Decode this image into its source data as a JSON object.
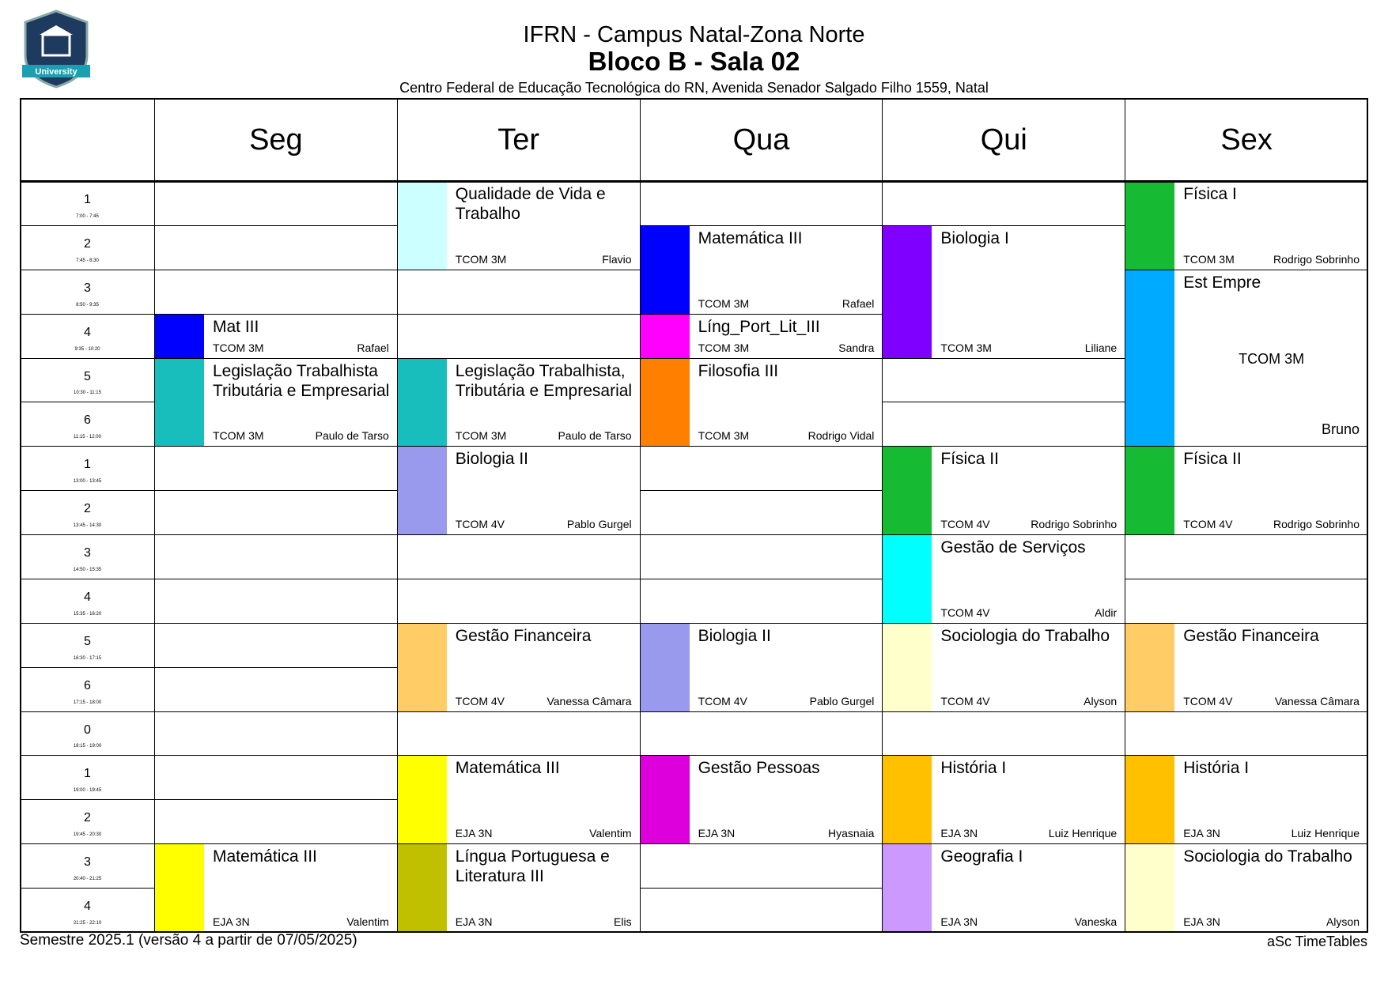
{
  "header": {
    "title": "IFRN - Campus Natal-Zona Norte",
    "room": "Bloco B - Sala 02",
    "address": "Centro Federal de Educação Tecnológica do RN, Avenida Senador Salgado Filho 1559, Natal",
    "logo": "University"
  },
  "days": [
    "Seg",
    "Ter",
    "Qua",
    "Qui",
    "Sex"
  ],
  "periods": [
    {
      "label": "1",
      "time": "7:00 - 7:45"
    },
    {
      "label": "2",
      "time": "7:45 - 8:30"
    },
    {
      "label": "3",
      "time": "8:50 - 9:35"
    },
    {
      "label": "4",
      "time": "9:35 - 10:20"
    },
    {
      "label": "5",
      "time": "10:30 - 11:15"
    },
    {
      "label": "6",
      "time": "11:15 - 12:00"
    },
    {
      "label": "1",
      "time": "13:00 - 13:45"
    },
    {
      "label": "2",
      "time": "13:45 - 14:30"
    },
    {
      "label": "3",
      "time": "14:50 - 15:35"
    },
    {
      "label": "4",
      "time": "15:35 - 16:20"
    },
    {
      "label": "5",
      "time": "16:30 - 17:15"
    },
    {
      "label": "6",
      "time": "17:15 - 18:00"
    },
    {
      "label": "0",
      "time": "18:15 - 19:00"
    },
    {
      "label": "1",
      "time": "19:00 - 19:45"
    },
    {
      "label": "2",
      "time": "19:45 - 20:30"
    },
    {
      "label": "3",
      "time": "20:40 - 21:25"
    },
    {
      "label": "4",
      "time": "21:25 - 22:10"
    }
  ],
  "lessons": [
    {
      "day": 0,
      "start": 3,
      "span": 1,
      "subject": "Mat III",
      "class": "TCOM 3M",
      "teacher": "Rafael",
      "color": "#0000ff"
    },
    {
      "day": 0,
      "start": 4,
      "span": 2,
      "subject": "Legislação Trabalhista Tributária e Empresarial",
      "class": "TCOM 3M",
      "teacher": "Paulo de Tarso",
      "color": "#17bebb"
    },
    {
      "day": 0,
      "start": 15,
      "span": 2,
      "subject": "Matemática III",
      "class": "EJA 3N",
      "teacher": "Valentim",
      "color": "#ffff00"
    },
    {
      "day": 1,
      "start": 0,
      "span": 2,
      "subject": "Qualidade de Vida e Trabalho",
      "class": "TCOM 3M",
      "teacher": "Flavio",
      "color": "#ccffff"
    },
    {
      "day": 1,
      "start": 4,
      "span": 2,
      "subject": "Legislação Trabalhista, Tributária e Empresarial",
      "class": "TCOM 3M",
      "teacher": "Paulo de Tarso",
      "color": "#17bebb"
    },
    {
      "day": 1,
      "start": 6,
      "span": 2,
      "subject": "Biologia II",
      "class": "TCOM 4V",
      "teacher": "Pablo Gurgel",
      "color": "#9999ee"
    },
    {
      "day": 1,
      "start": 10,
      "span": 2,
      "subject": "Gestão Financeira",
      "class": "TCOM 4V",
      "teacher": "Vanessa Câmara",
      "color": "#ffcc66"
    },
    {
      "day": 1,
      "start": 13,
      "span": 2,
      "subject": "Matemática III",
      "class": "EJA 3N",
      "teacher": "Valentim",
      "color": "#ffff00"
    },
    {
      "day": 1,
      "start": 15,
      "span": 2,
      "subject": "Língua Portuguesa e Literatura III",
      "class": "EJA 3N",
      "teacher": "Elis",
      "color": "#c0c000"
    },
    {
      "day": 2,
      "start": 1,
      "span": 2,
      "subject": "Matemática III",
      "class": "TCOM 3M",
      "teacher": "Rafael",
      "color": "#0000ff"
    },
    {
      "day": 2,
      "start": 3,
      "span": 1,
      "subject": "Líng_Port_Lit_III",
      "class": "TCOM 3M",
      "teacher": "Sandra",
      "color": "#ff00ff"
    },
    {
      "day": 2,
      "start": 4,
      "span": 2,
      "subject": "Filosofia III",
      "class": "TCOM 3M",
      "teacher": "Rodrigo Vidal",
      "color": "#ff8000"
    },
    {
      "day": 2,
      "start": 10,
      "span": 2,
      "subject": "Biologia II",
      "class": "TCOM 4V",
      "teacher": "Pablo Gurgel",
      "color": "#9999ee"
    },
    {
      "day": 2,
      "start": 13,
      "span": 2,
      "subject": "Gestão Pessoas",
      "class": "EJA 3N",
      "teacher": "Hyasnaia",
      "color": "#dd00dd"
    },
    {
      "day": 3,
      "start": 1,
      "span": 3,
      "subject": "Biologia I",
      "class": "TCOM 3M",
      "teacher": "Liliane",
      "color": "#8000ff"
    },
    {
      "day": 3,
      "start": 6,
      "span": 2,
      "subject": "Física II",
      "class": "TCOM 4V",
      "teacher": "Rodrigo Sobrinho",
      "color": "#17bb33"
    },
    {
      "day": 3,
      "start": 8,
      "span": 2,
      "subject": "Gestão de Serviços",
      "class": "TCOM 4V",
      "teacher": "Aldir",
      "color": "#00ffff"
    },
    {
      "day": 3,
      "start": 10,
      "span": 2,
      "subject": "Sociologia do Trabalho",
      "class": "TCOM 4V",
      "teacher": "Alyson",
      "color": "#ffffcc"
    },
    {
      "day": 3,
      "start": 13,
      "span": 2,
      "subject": "História I",
      "class": "EJA 3N",
      "teacher": "Luiz Henrique",
      "color": "#ffc000"
    },
    {
      "day": 3,
      "start": 15,
      "span": 2,
      "subject": "Geografia I",
      "class": "EJA 3N",
      "teacher": "Vaneska",
      "color": "#cc99ff"
    },
    {
      "day": 4,
      "start": 0,
      "span": 2,
      "subject": "Física I",
      "class": "TCOM 3M",
      "teacher": "Rodrigo Sobrinho",
      "color": "#17bb33"
    },
    {
      "day": 4,
      "start": 2,
      "span": 4,
      "subject": "Est Empre",
      "class": "TCOM 3M",
      "teacher": "Bruno",
      "color": "#00aaff"
    },
    {
      "day": 4,
      "start": 6,
      "span": 2,
      "subject": "Física II",
      "class": "TCOM 4V",
      "teacher": "Rodrigo Sobrinho",
      "color": "#17bb33"
    },
    {
      "day": 4,
      "start": 10,
      "span": 2,
      "subject": "Gestão Financeira",
      "class": "TCOM 4V",
      "teacher": "Vanessa Câmara",
      "color": "#ffcc66"
    },
    {
      "day": 4,
      "start": 13,
      "span": 2,
      "subject": "História I",
      "class": "EJA 3N",
      "teacher": "Luiz Henrique",
      "color": "#ffc000"
    },
    {
      "day": 4,
      "start": 15,
      "span": 2,
      "subject": "Sociologia do Trabalho",
      "class": "EJA 3N",
      "teacher": "Alyson",
      "color": "#ffffcc"
    }
  ],
  "footer": {
    "left": "Semestre 2025.1 (versão 4 a partir de 07/05/2025)",
    "right": "aSc TimeTables"
  }
}
